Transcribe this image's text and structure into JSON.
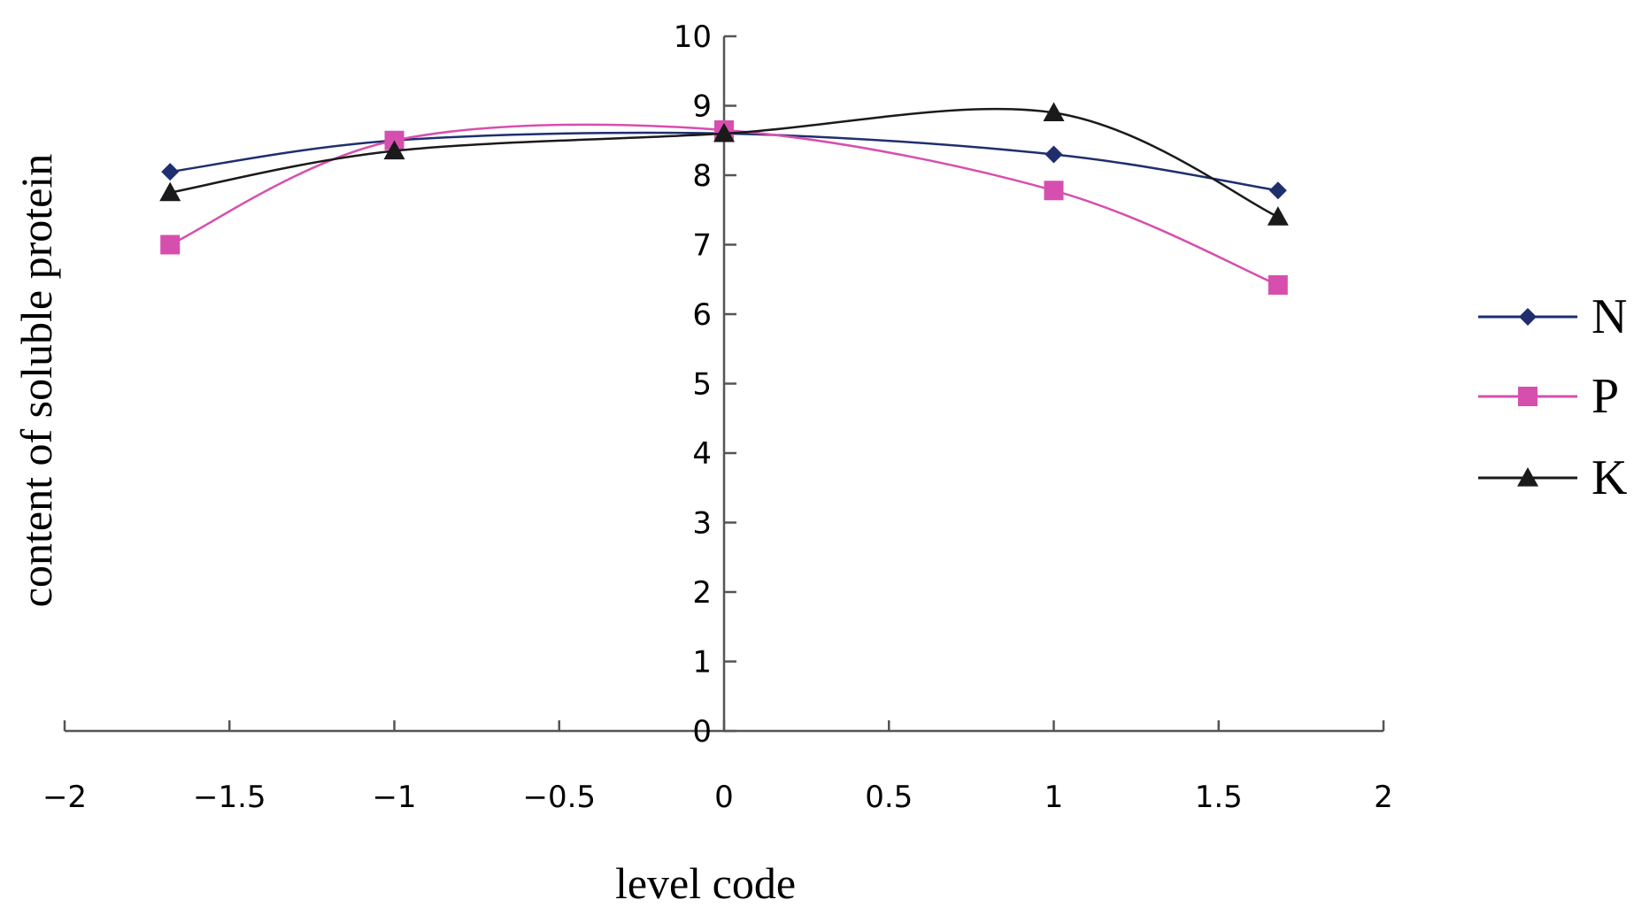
{
  "chart_data": {
    "type": "line",
    "title": "",
    "xlabel": "level code",
    "ylabel": "content of soluble protein",
    "xlim": [
      -2,
      2
    ],
    "ylim": [
      0,
      10
    ],
    "x_ticks": [
      -2,
      -1.5,
      -1,
      -0.5,
      0,
      0.5,
      1,
      1.5,
      2
    ],
    "x_tick_labels": [
      "−2",
      "−1.5",
      "−1",
      "−0.5",
      "0",
      "0.5",
      "1",
      "1.5",
      "2"
    ],
    "y_ticks": [
      0,
      1,
      2,
      3,
      4,
      5,
      6,
      7,
      8,
      9,
      10
    ],
    "y_tick_labels": [
      "0",
      "1",
      "2",
      "3",
      "4",
      "5",
      "6",
      "7",
      "8",
      "9",
      "10"
    ],
    "smoothed": true,
    "grid": false,
    "legend_position": "right",
    "x": [
      -1.68,
      -1,
      0,
      1,
      1.68
    ],
    "series": [
      {
        "name": "N",
        "values": [
          8.05,
          8.5,
          8.6,
          8.3,
          7.78
        ],
        "color": "#1f2f6e",
        "marker": "diamond"
      },
      {
        "name": "P",
        "values": [
          7.0,
          8.5,
          8.65,
          7.78,
          6.42
        ],
        "color": "#d64fae",
        "marker": "square"
      },
      {
        "name": "K",
        "values": [
          7.75,
          8.35,
          8.6,
          8.9,
          7.4
        ],
        "color": "#1a1a1a",
        "marker": "triangle"
      }
    ]
  }
}
